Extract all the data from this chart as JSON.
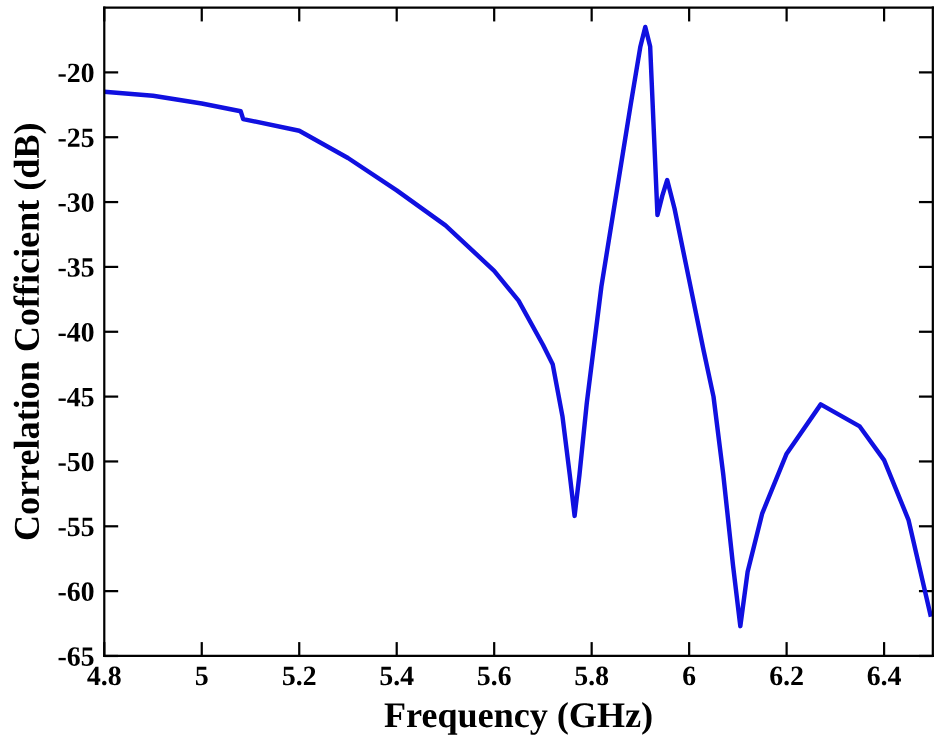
{
  "chart_data": {
    "type": "line",
    "xlabel": "Frequency (GHz)",
    "ylabel": "Correlation Cofficient (dB)",
    "xlim": [
      4.8,
      6.5
    ],
    "ylim": [
      -65,
      -15
    ],
    "xticks": [
      4.8,
      5,
      5.2,
      5.4,
      5.6,
      5.8,
      6,
      6.2,
      6.4
    ],
    "yticks": [
      -65,
      -60,
      -55,
      -50,
      -45,
      -40,
      -35,
      -30,
      -25,
      -20
    ],
    "grid": false,
    "marker": "none",
    "line_style": "solid",
    "series": [
      {
        "color": "#1010e0",
        "x": [
          4.8,
          4.9,
          5.0,
          5.08,
          5.085,
          5.2,
          5.3,
          5.4,
          5.5,
          5.6,
          5.65,
          5.7,
          5.72,
          5.74,
          5.755,
          5.765,
          5.775,
          5.79,
          5.82,
          5.85,
          5.88,
          5.9,
          5.91,
          5.92,
          5.935,
          5.945,
          5.955,
          5.97,
          6.0,
          6.03,
          6.05,
          6.07,
          6.09,
          6.105,
          6.12,
          6.15,
          6.2,
          6.27,
          6.35,
          6.4,
          6.45,
          6.495
        ],
        "values": [
          -21.5,
          -21.8,
          -22.4,
          -23.0,
          -23.6,
          -24.5,
          -26.6,
          -29.1,
          -31.8,
          -35.3,
          -37.6,
          -41.0,
          -42.5,
          -46.5,
          -51,
          -54.2,
          -51,
          -45.5,
          -36.5,
          -29.5,
          -22.5,
          -18,
          -16.5,
          -18,
          -31,
          -29.5,
          -28.3,
          -30.5,
          -36,
          -41.5,
          -45,
          -51,
          -58,
          -62.7,
          -58.5,
          -54,
          -49.4,
          -45.6,
          -47.3,
          -49.9,
          -54.5,
          -61.8
        ]
      }
    ]
  }
}
